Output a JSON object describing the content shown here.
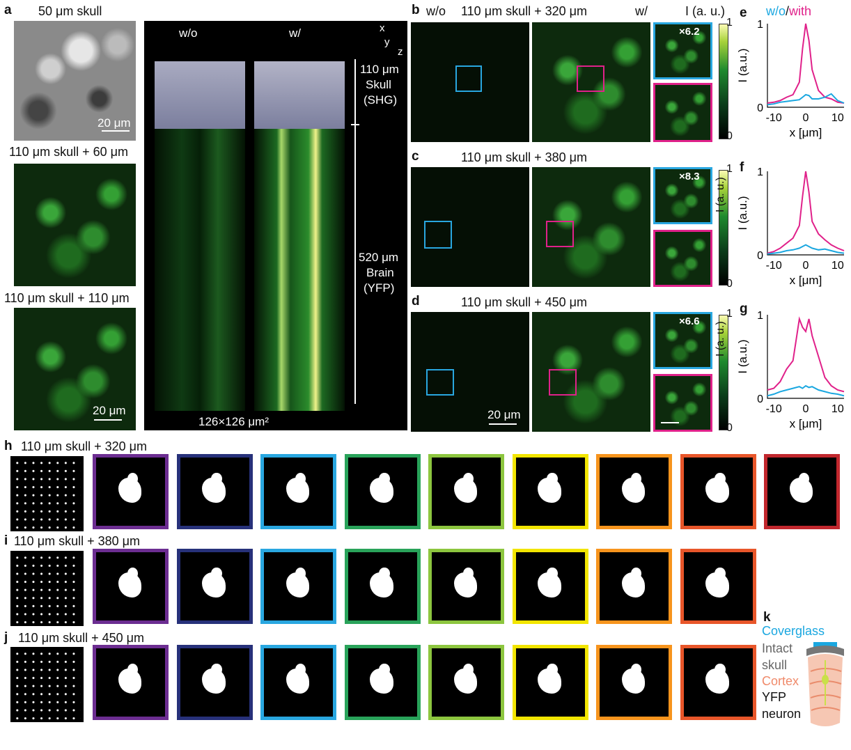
{
  "panel_letters": {
    "a": "a",
    "b": "b",
    "c": "c",
    "d": "d",
    "e": "e",
    "f": "f",
    "g": "g",
    "h": "h",
    "i": "i",
    "j": "j",
    "k": "k"
  },
  "panel_a": {
    "top_title": "50 μm skull",
    "mid_title": "110 μm skull + 60 μm",
    "bot_title": "110 μm skull + 110 μm",
    "scale_top": "20 μm",
    "scale_bot": "20 μm",
    "volume_wo": "w/o",
    "volume_w": "w/",
    "axis_x": "x",
    "axis_y": "y",
    "axis_z": "z",
    "skull_depth": "110 μm",
    "skull_line1": "Skull",
    "skull_line2": "(SHG)",
    "brain_depth": "520 μm",
    "brain_line1": "Brain",
    "brain_line2": "(YFP)",
    "area": "126×126 μm²"
  },
  "panel_bd": {
    "wo": "w/o",
    "w": "w/",
    "intensity_label": "I (a. u.)",
    "b_title": "110 μm skull + 320 μm",
    "c_title": "110 μm skull + 380 μm",
    "d_title": "110 μm skull + 450 μm",
    "b_gain": "×6.2",
    "c_gain": "×8.3",
    "d_gain": "×6.6",
    "cbar_top": "1",
    "cbar_bottom": "0",
    "scale": "20 μm"
  },
  "profiles": {
    "legend_wo": "w/o",
    "legend_sep": "/",
    "legend_with": "with",
    "ylabel": "I (a.u.)",
    "xlabel": "x [μm]",
    "xticks": [
      "-10",
      "0",
      "10"
    ],
    "yticks": [
      "0",
      "1"
    ],
    "color_wo": "#1aa7e0",
    "color_with": "#e0218a"
  },
  "chart_data": [
    {
      "type": "line",
      "panel": "e",
      "xlabel": "x [μm]",
      "ylabel": "I (a.u.)",
      "xlim": [
        -12,
        12
      ],
      "ylim": [
        0,
        1
      ],
      "x": [
        -12,
        -10,
        -8,
        -6,
        -4,
        -2,
        -1,
        0,
        1,
        2,
        4,
        6,
        8,
        10,
        12
      ],
      "series": [
        {
          "name": "with",
          "values": [
            0.05,
            0.06,
            0.08,
            0.12,
            0.15,
            0.3,
            0.7,
            1.0,
            0.8,
            0.45,
            0.2,
            0.12,
            0.1,
            0.06,
            0.05
          ]
        },
        {
          "name": "w/o",
          "values": [
            0.03,
            0.04,
            0.06,
            0.07,
            0.08,
            0.09,
            0.12,
            0.15,
            0.14,
            0.1,
            0.1,
            0.12,
            0.16,
            0.08,
            0.05
          ]
        }
      ]
    },
    {
      "type": "line",
      "panel": "f",
      "xlabel": "x [μm]",
      "ylabel": "I (a.u.)",
      "xlim": [
        -12,
        12
      ],
      "ylim": [
        0,
        1
      ],
      "x": [
        -12,
        -10,
        -8,
        -6,
        -4,
        -2,
        -1,
        0,
        1,
        2,
        4,
        6,
        8,
        10,
        12
      ],
      "series": [
        {
          "name": "with",
          "values": [
            0.02,
            0.04,
            0.08,
            0.14,
            0.2,
            0.35,
            0.7,
            1.0,
            0.75,
            0.4,
            0.25,
            0.18,
            0.12,
            0.08,
            0.05
          ]
        },
        {
          "name": "w/o",
          "values": [
            0.01,
            0.02,
            0.03,
            0.05,
            0.06,
            0.08,
            0.1,
            0.12,
            0.1,
            0.08,
            0.06,
            0.07,
            0.05,
            0.03,
            0.02
          ]
        }
      ]
    },
    {
      "type": "line",
      "panel": "g",
      "xlabel": "x [μm]",
      "ylabel": "I (a.u.)",
      "xlim": [
        -12,
        12
      ],
      "ylim": [
        0,
        1
      ],
      "x": [
        -12,
        -10,
        -8,
        -6,
        -4,
        -2,
        -1,
        0,
        1,
        2,
        4,
        6,
        8,
        10,
        12
      ],
      "series": [
        {
          "name": "with",
          "values": [
            0.1,
            0.12,
            0.2,
            0.35,
            0.45,
            0.95,
            0.85,
            0.8,
            0.95,
            0.75,
            0.5,
            0.25,
            0.15,
            0.1,
            0.08
          ]
        },
        {
          "name": "w/o",
          "values": [
            0.03,
            0.05,
            0.08,
            0.1,
            0.12,
            0.14,
            0.12,
            0.15,
            0.13,
            0.14,
            0.1,
            0.08,
            0.06,
            0.05,
            0.03
          ]
        }
      ]
    }
  ],
  "panel_hij": {
    "h_title": "110 μm skull + 320 μm",
    "i_title": "110 μm skull + 380 μm",
    "j_title": "110 μm skull + 450 μm",
    "frame_colors_h": [
      "#6c2d91",
      "#27317a",
      "#29a7e0",
      "#29a35a",
      "#8dc63f",
      "#f2e500",
      "#f7941d",
      "#e8562a",
      "#c1272d"
    ],
    "frame_colors_ij": [
      "#6c2d91",
      "#27317a",
      "#29a7e0",
      "#29a35a",
      "#8dc63f",
      "#f2e500",
      "#f7941d",
      "#e8562a"
    ]
  },
  "panel_k": {
    "coverglass": "Coverglass",
    "skull1": "Intact",
    "skull2": "skull",
    "cortex": "Cortex",
    "neuron1": "YFP",
    "neuron2": "neuron",
    "color_coverglass": "#1aa7e0",
    "color_skull": "#666666",
    "color_cortex": "#f08a6a"
  }
}
